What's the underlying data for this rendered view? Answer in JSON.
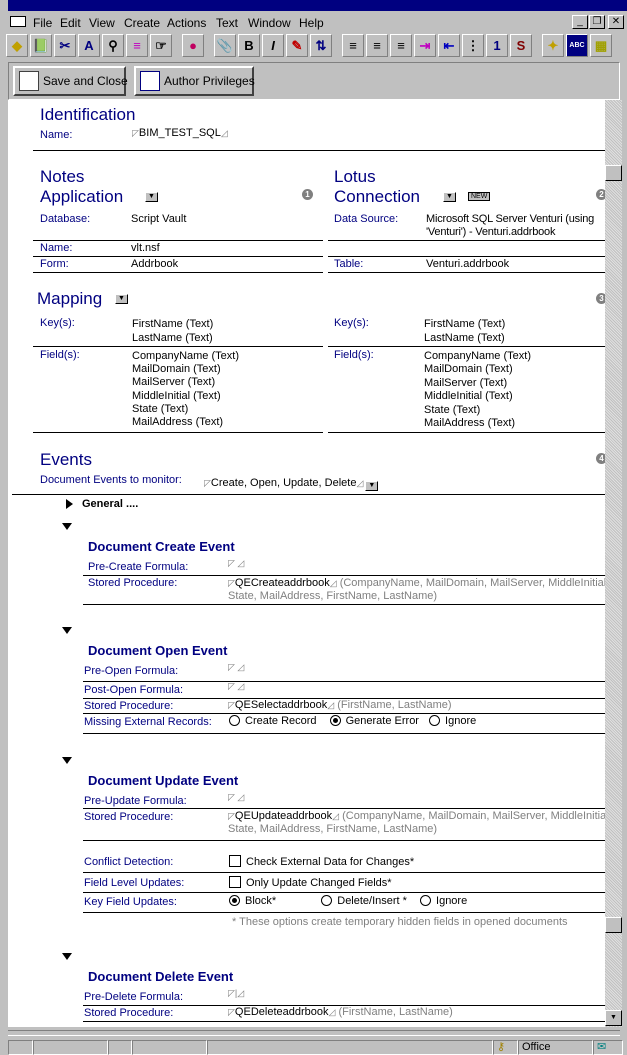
{
  "menu": [
    "File",
    "Edit",
    "View",
    "Create",
    "Actions",
    "Text",
    "Window",
    "Help"
  ],
  "window_buttons": [
    "_",
    "❐",
    "✕"
  ],
  "toolbar": [
    "◆",
    "📗",
    "✂",
    "A",
    "⚲",
    "≡",
    "☞",
    "●",
    "📎",
    "B",
    "I",
    "✎",
    "⇅",
    "≡",
    "≡",
    "≡",
    "⇥",
    "⇤",
    "⋮",
    "1",
    "S",
    "✦",
    "ABC",
    "▦"
  ],
  "actions": {
    "save_close": "Save and Close",
    "author_privileges": "Author Privileges"
  },
  "identification": {
    "title": "Identification",
    "name_label": "Name:",
    "name_value": "BIM_TEST_SQL"
  },
  "notes_app": {
    "title_line1": "Notes",
    "title_line2": "Application",
    "badge": "1",
    "database_label": "Database:",
    "database_value": "Script Vault",
    "name_label": "Name:",
    "name_value": "vlt.nsf",
    "form_label": "Form:",
    "form_value": "Addrbook"
  },
  "lotus_conn": {
    "title_line1": "Lotus",
    "title_line2": "Connection",
    "new_badge": "NEW",
    "badge": "2",
    "ds_label": "Data Source:",
    "ds_value_1": "Microsoft SQL Server Venturi (using",
    "ds_value_2": "'Venturi') - Venturi.addrbook",
    "table_label": "Table:",
    "table_value": "Venturi.addrbook"
  },
  "mapping": {
    "title": "Mapping",
    "badge": "3",
    "keys_label": "Key(s):",
    "fields_label": "Field(s):",
    "keys": [
      "FirstName (Text)",
      "LastName (Text)"
    ],
    "fields": [
      "CompanyName (Text)",
      "MailDomain (Text)",
      "MailServer (Text)",
      "MiddleInitial (Text)",
      "State (Text)",
      "MailAddress (Text)"
    ]
  },
  "events": {
    "title": "Events",
    "badge": "4",
    "monitor_label": "Document Events to monitor:",
    "monitor_value": "Create, Open, Update, Delete",
    "general": "General ...."
  },
  "create": {
    "title": "Document Create Event",
    "pre_label": "Pre-Create Formula:",
    "sp_label": "Stored Procedure:",
    "sp_value": "QECreateaddrbook",
    "sp_args_1": "(CompanyName, MailDomain, MailServer, MiddleInitial,",
    "sp_args_2": "State, MailAddress, FirstName, LastName)"
  },
  "open": {
    "title": "Document Open Event",
    "pre_label": "Pre-Open Formula:",
    "post_label": "Post-Open Formula:",
    "sp_label": "Stored Procedure:",
    "sp_value": "QESelectaddrbook",
    "sp_args": "(FirstName, LastName)",
    "missing_label": "Missing External Records:",
    "options": [
      "Create Record",
      "Generate Error",
      "Ignore"
    ],
    "selected": "Generate Error"
  },
  "update": {
    "title": "Document Update Event",
    "pre_label": "Pre-Update Formula:",
    "sp_label": "Stored Procedure:",
    "sp_value": "QEUpdateaddrbook",
    "sp_args_1": "(CompanyName, MailDomain, MailServer, MiddleInitial,",
    "sp_args_2": "State, MailAddress, FirstName, LastName)",
    "conflict_label": "Conflict Detection:",
    "conflict_option": "Check External Data for Changes*",
    "conflict_checked": false,
    "field_label": "Field Level Updates:",
    "field_option": "Only Update Changed Fields*",
    "field_checked": false,
    "key_label": "Key Field Updates:",
    "key_options": [
      "Block*",
      "Delete/Insert *",
      "Ignore"
    ],
    "key_selected": "Block*",
    "note": "* These options create temporary hidden fields in opened documents"
  },
  "delete": {
    "title": "Document Delete Event",
    "pre_label": "Pre-Delete Formula:",
    "sp_label": "Stored Procedure:",
    "sp_value": "QEDeleteaddrbook",
    "sp_args": "(FirstName, LastName)"
  },
  "status": {
    "location": "Office"
  },
  "colors": {
    "heading": "#000080",
    "titlebar": "#000080",
    "chrome": "#c0c0c0"
  }
}
